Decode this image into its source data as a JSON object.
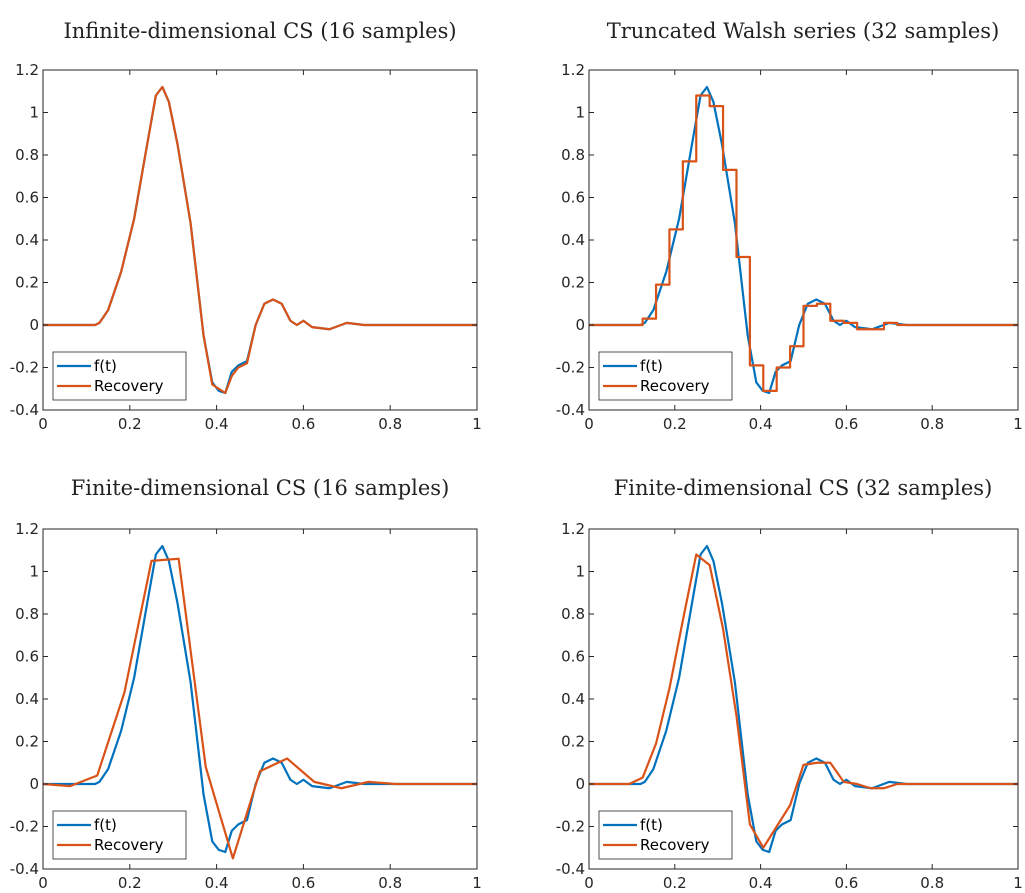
{
  "chart_data": [
    {
      "type": "line",
      "title": "Infinite-dimensional CS (16 samples)",
      "xlabel": "",
      "ylabel": "",
      "xlim": [
        0,
        1
      ],
      "ylim": [
        -0.4,
        1.2
      ],
      "xticks": [
        "0",
        "0.2",
        "0.4",
        "0.6",
        "0.8",
        "1"
      ],
      "yticks": [
        "-0.4",
        "-0.2",
        "0",
        "0.2",
        "0.4",
        "0.6",
        "0.8",
        "1",
        "1.2"
      ],
      "legend": {
        "position": "bottom-left",
        "entries": [
          "f(t)",
          "Recovery"
        ]
      },
      "series": [
        {
          "name": "f(t)",
          "color": "#0072BD",
          "x": [
            0,
            0.12,
            0.13,
            0.15,
            0.18,
            0.21,
            0.24,
            0.26,
            0.275,
            0.29,
            0.31,
            0.34,
            0.37,
            0.39,
            0.405,
            0.42,
            0.435,
            0.45,
            0.47,
            0.49,
            0.51,
            0.53,
            0.55,
            0.57,
            0.585,
            0.6,
            0.62,
            0.66,
            0.7,
            0.74,
            0.78,
            1
          ],
          "y": [
            0,
            0,
            0.01,
            0.07,
            0.25,
            0.5,
            0.85,
            1.08,
            1.12,
            1.05,
            0.85,
            0.48,
            -0.05,
            -0.27,
            -0.31,
            -0.32,
            -0.22,
            -0.19,
            -0.17,
            0.0,
            0.1,
            0.12,
            0.1,
            0.02,
            0.0,
            0.02,
            -0.01,
            -0.02,
            0.01,
            0.0,
            0.0,
            0.0
          ]
        },
        {
          "name": "Recovery",
          "color": "#D95319",
          "x": [
            0,
            0.12,
            0.13,
            0.15,
            0.18,
            0.21,
            0.24,
            0.26,
            0.275,
            0.29,
            0.31,
            0.34,
            0.37,
            0.39,
            0.405,
            0.42,
            0.435,
            0.45,
            0.47,
            0.49,
            0.51,
            0.53,
            0.55,
            0.57,
            0.585,
            0.6,
            0.62,
            0.66,
            0.7,
            0.74,
            0.78,
            1
          ],
          "y": [
            0,
            0,
            0.01,
            0.07,
            0.25,
            0.5,
            0.85,
            1.08,
            1.12,
            1.05,
            0.85,
            0.48,
            -0.05,
            -0.28,
            -0.3,
            -0.32,
            -0.24,
            -0.2,
            -0.18,
            0.0,
            0.1,
            0.12,
            0.1,
            0.02,
            0.0,
            0.02,
            -0.01,
            -0.02,
            0.01,
            0.0,
            0.0,
            0.0
          ]
        }
      ]
    },
    {
      "type": "line",
      "title": "Truncated Walsh series (32 samples)",
      "xlabel": "",
      "ylabel": "",
      "xlim": [
        0,
        1
      ],
      "ylim": [
        -0.4,
        1.2
      ],
      "xticks": [
        "0",
        "0.2",
        "0.4",
        "0.6",
        "0.8",
        "1"
      ],
      "yticks": [
        "-0.4",
        "-0.2",
        "0",
        "0.2",
        "0.4",
        "0.6",
        "0.8",
        "1",
        "1.2"
      ],
      "legend": {
        "position": "bottom-left",
        "entries": [
          "f(t)",
          "Recovery"
        ]
      },
      "series": [
        {
          "name": "f(t)",
          "color": "#0072BD",
          "x": [
            0,
            0.12,
            0.13,
            0.15,
            0.18,
            0.21,
            0.24,
            0.26,
            0.275,
            0.29,
            0.31,
            0.34,
            0.37,
            0.39,
            0.405,
            0.42,
            0.435,
            0.45,
            0.47,
            0.49,
            0.51,
            0.53,
            0.55,
            0.57,
            0.585,
            0.6,
            0.62,
            0.66,
            0.7,
            0.74,
            0.78,
            1
          ],
          "y": [
            0,
            0,
            0.01,
            0.07,
            0.25,
            0.5,
            0.85,
            1.08,
            1.12,
            1.05,
            0.85,
            0.48,
            -0.05,
            -0.27,
            -0.31,
            -0.32,
            -0.22,
            -0.19,
            -0.17,
            0.0,
            0.1,
            0.12,
            0.1,
            0.02,
            0.0,
            0.02,
            -0.01,
            -0.02,
            0.01,
            0.0,
            0.0,
            0.0
          ]
        },
        {
          "name": "Recovery",
          "color": "#D95319",
          "step": true,
          "x": [
            0,
            0.125,
            0.15625,
            0.1875,
            0.21875,
            0.25,
            0.28125,
            0.3125,
            0.34375,
            0.375,
            0.40625,
            0.4375,
            0.46875,
            0.5,
            0.53125,
            0.5625,
            0.59375,
            0.625,
            0.65625,
            0.6875,
            0.71875,
            0.75,
            0.78125,
            1
          ],
          "y": [
            0,
            0.03,
            0.19,
            0.45,
            0.77,
            1.08,
            1.03,
            0.73,
            0.32,
            -0.19,
            -0.31,
            -0.2,
            -0.1,
            0.09,
            0.1,
            0.02,
            0.01,
            -0.02,
            -0.02,
            0.01,
            0.0,
            0.0,
            0.0,
            0.0
          ]
        }
      ]
    },
    {
      "type": "line",
      "title": "Finite-dimensional CS (16 samples)",
      "xlabel": "",
      "ylabel": "",
      "xlim": [
        0,
        1
      ],
      "ylim": [
        -0.4,
        1.2
      ],
      "xticks": [
        "0",
        "0.2",
        "0.4",
        "0.6",
        "0.8",
        "1"
      ],
      "yticks": [
        "-0.4",
        "-0.2",
        "0",
        "0.2",
        "0.4",
        "0.6",
        "0.8",
        "1",
        "1.2"
      ],
      "legend": {
        "position": "bottom-left",
        "entries": [
          "f(t)",
          "Recovery"
        ]
      },
      "series": [
        {
          "name": "f(t)",
          "color": "#0072BD",
          "x": [
            0,
            0.12,
            0.13,
            0.15,
            0.18,
            0.21,
            0.24,
            0.26,
            0.275,
            0.29,
            0.31,
            0.34,
            0.37,
            0.39,
            0.405,
            0.42,
            0.435,
            0.45,
            0.47,
            0.49,
            0.51,
            0.53,
            0.55,
            0.57,
            0.585,
            0.6,
            0.62,
            0.66,
            0.7,
            0.74,
            0.78,
            1
          ],
          "y": [
            0,
            0,
            0.01,
            0.07,
            0.25,
            0.5,
            0.85,
            1.08,
            1.12,
            1.05,
            0.85,
            0.48,
            -0.05,
            -0.27,
            -0.31,
            -0.32,
            -0.22,
            -0.19,
            -0.17,
            0.0,
            0.1,
            0.12,
            0.1,
            0.02,
            0.0,
            0.02,
            -0.01,
            -0.02,
            0.01,
            0.0,
            0.0,
            0.0
          ]
        },
        {
          "name": "Recovery",
          "color": "#D95319",
          "x": [
            0,
            0.0625,
            0.125,
            0.1875,
            0.25,
            0.3125,
            0.375,
            0.4375,
            0.5,
            0.5625,
            0.625,
            0.6875,
            0.75,
            0.8125,
            0.875,
            0.9375,
            1
          ],
          "y": [
            0,
            -0.01,
            0.04,
            0.43,
            1.05,
            1.06,
            0.08,
            -0.35,
            0.06,
            0.12,
            0.01,
            -0.02,
            0.01,
            0.0,
            0.0,
            0.0,
            0.0
          ]
        }
      ]
    },
    {
      "type": "line",
      "title": "Finite-dimensional CS (32 samples)",
      "xlabel": "",
      "ylabel": "",
      "xlim": [
        0,
        1
      ],
      "ylim": [
        -0.4,
        1.2
      ],
      "xticks": [
        "0",
        "0.2",
        "0.4",
        "0.6",
        "0.8",
        "1"
      ],
      "yticks": [
        "-0.4",
        "-0.2",
        "0",
        "0.2",
        "0.4",
        "0.6",
        "0.8",
        "1",
        "1.2"
      ],
      "legend": {
        "position": "bottom-left",
        "entries": [
          "f(t)",
          "Recovery"
        ]
      },
      "series": [
        {
          "name": "f(t)",
          "color": "#0072BD",
          "x": [
            0,
            0.12,
            0.13,
            0.15,
            0.18,
            0.21,
            0.24,
            0.26,
            0.275,
            0.29,
            0.31,
            0.34,
            0.37,
            0.39,
            0.405,
            0.42,
            0.435,
            0.45,
            0.47,
            0.49,
            0.51,
            0.53,
            0.55,
            0.57,
            0.585,
            0.6,
            0.62,
            0.66,
            0.7,
            0.74,
            0.78,
            1
          ],
          "y": [
            0,
            0,
            0.01,
            0.07,
            0.25,
            0.5,
            0.85,
            1.08,
            1.12,
            1.05,
            0.85,
            0.48,
            -0.05,
            -0.27,
            -0.31,
            -0.32,
            -0.22,
            -0.19,
            -0.17,
            0.0,
            0.1,
            0.12,
            0.1,
            0.02,
            0.0,
            0.02,
            -0.01,
            -0.02,
            0.01,
            0.0,
            0.0,
            0.0
          ]
        },
        {
          "name": "Recovery",
          "color": "#D95319",
          "x": [
            0,
            0.03125,
            0.0625,
            0.09375,
            0.125,
            0.15625,
            0.1875,
            0.21875,
            0.25,
            0.28125,
            0.3125,
            0.34375,
            0.375,
            0.40625,
            0.4375,
            0.46875,
            0.5,
            0.53125,
            0.5625,
            0.59375,
            0.625,
            0.65625,
            0.6875,
            0.71875,
            0.75,
            0.78125,
            1
          ],
          "y": [
            0,
            0,
            0,
            0,
            0.03,
            0.19,
            0.45,
            0.77,
            1.08,
            1.03,
            0.73,
            0.32,
            -0.19,
            -0.3,
            -0.2,
            -0.1,
            0.09,
            0.1,
            0.1,
            0.01,
            0.0,
            -0.02,
            -0.02,
            0.0,
            0.0,
            0.0,
            0.0
          ]
        }
      ]
    }
  ]
}
